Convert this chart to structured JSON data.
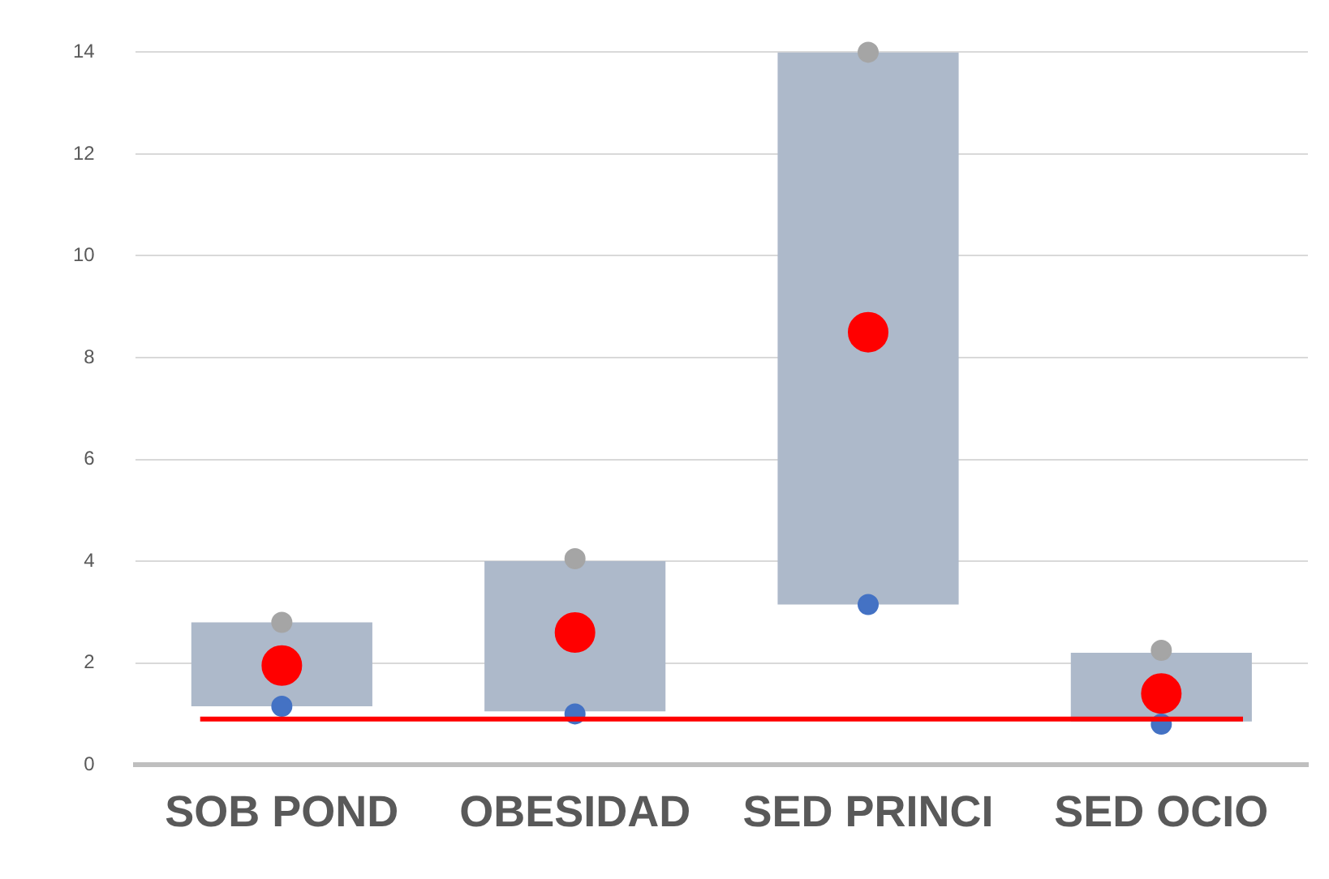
{
  "chart_data": {
    "type": "bar",
    "categories": [
      "SOB POND",
      "OBESIDAD",
      "SED PRINCI",
      "SED OCIO"
    ],
    "series": [
      {
        "color": "#adb9ca",
        "values": [
          1.65,
          2.95,
          10.85,
          1.35
        ],
        "base": [
          1.15,
          1.05,
          3.15,
          0.85
        ]
      },
      {
        "type": "scatter",
        "color": "#a5a5a5",
        "x": [
          "SOB POND",
          "OBESIDAD",
          "SED PRINCI",
          "SED OCIO"
        ],
        "values": [
          2.8,
          4.05,
          14,
          2.25
        ]
      },
      {
        "type": "scatter",
        "color": "#4472c4",
        "x": [
          "SOB POND",
          "OBESIDAD",
          "SED PRINCI",
          "SED OCIO"
        ],
        "values": [
          1.15,
          1,
          3.15,
          0.8
        ]
      },
      {
        "type": "scatter",
        "color": "#ff0000",
        "x": [
          "SOB POND",
          "OBESIDAD",
          "SED PRINCI",
          "SED OCIO"
        ],
        "values": [
          1.95,
          2.6,
          8.5,
          1.4
        ]
      }
    ],
    "ylim": [
      0,
      14
    ],
    "yticks": [
      0,
      2,
      4,
      6,
      8,
      10,
      12,
      14
    ],
    "grid": "y",
    "marker": "circle",
    "ref_lines": [
      {
        "axis": "y",
        "value": 0.9,
        "color": "#ff0000"
      }
    ]
  }
}
